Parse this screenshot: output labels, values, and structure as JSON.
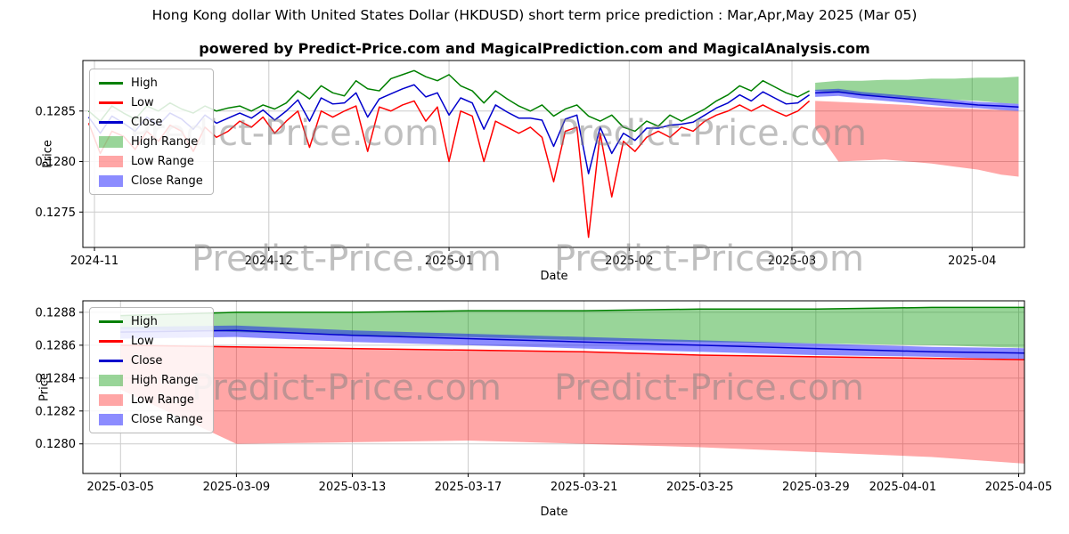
{
  "page": {
    "title": "Hong Kong dollar With United States Dollar (HKDUSD) short term price prediction : Mar,Apr,May 2025 (Mar 05)",
    "subtitle": "powered by Predict-Price.com and MagicalPrediction.com and MagicalAnalysis.com",
    "watermark": "Predict-Price.com"
  },
  "legend": {
    "entries": [
      {
        "label": "High",
        "type": "line",
        "color": "#008000"
      },
      {
        "label": "Low",
        "type": "line",
        "color": "#ff0000"
      },
      {
        "label": "Close",
        "type": "line",
        "color": "#0000cd"
      },
      {
        "label": "High Range",
        "type": "patch",
        "color": "rgba(0,150,0,0.4)"
      },
      {
        "label": "Low Range",
        "type": "patch",
        "color": "rgba(255,0,0,0.35)"
      },
      {
        "label": "Close Range",
        "type": "patch",
        "color": "rgba(0,0,255,0.45)"
      }
    ]
  },
  "chart_data": [
    {
      "name": "main-chart",
      "type": "line",
      "title": "",
      "xlabel": "Date",
      "ylabel": "Price",
      "xlim": [
        2,
        164
      ],
      "ylim": [
        0.12715,
        0.129
      ],
      "grid": true,
      "legend_position": "upper-left",
      "xticks": [
        {
          "x": 4,
          "label": "2024-11"
        },
        {
          "x": 34,
          "label": "2024-12"
        },
        {
          "x": 65,
          "label": "2025-01"
        },
        {
          "x": 96,
          "label": "2025-02"
        },
        {
          "x": 124,
          "label": "2025-03"
        },
        {
          "x": 155,
          "label": "2025-04"
        }
      ],
      "yticks": [
        {
          "y": 0.1275,
          "label": "0.1275"
        },
        {
          "y": 0.128,
          "label": "0.1280"
        },
        {
          "y": 0.1285,
          "label": "0.1285"
        }
      ],
      "x_hist": [
        3,
        5,
        7,
        9,
        11,
        13,
        15,
        17,
        19,
        21,
        23,
        25,
        27,
        29,
        31,
        33,
        35,
        37,
        39,
        41,
        43,
        45,
        47,
        49,
        51,
        53,
        55,
        57,
        59,
        61,
        63,
        65,
        67,
        69,
        71,
        73,
        75,
        77,
        79,
        81,
        83,
        85,
        87,
        89,
        91,
        93,
        95,
        97,
        99,
        101,
        103,
        105,
        107,
        109,
        111,
        113,
        115,
        117,
        119,
        121,
        123,
        125,
        127
      ],
      "x_pred": [
        128,
        132,
        136,
        140,
        144,
        148,
        152,
        156,
        160,
        163
      ],
      "series": [
        {
          "name": "High",
          "color": "#008000",
          "x": "hist",
          "y": [
            0.1285,
            0.1284,
            0.12855,
            0.12848,
            0.12842,
            0.12855,
            0.1285,
            0.12858,
            0.12852,
            0.12848,
            0.12855,
            0.1285,
            0.12853,
            0.12855,
            0.1285,
            0.12856,
            0.12852,
            0.12858,
            0.1287,
            0.12862,
            0.12875,
            0.12868,
            0.12865,
            0.1288,
            0.12872,
            0.1287,
            0.12882,
            0.12886,
            0.1289,
            0.12884,
            0.1288,
            0.12886,
            0.12875,
            0.1287,
            0.12858,
            0.1287,
            0.12862,
            0.12855,
            0.1285,
            0.12856,
            0.12845,
            0.12852,
            0.12856,
            0.12845,
            0.1284,
            0.12846,
            0.12834,
            0.1283,
            0.1284,
            0.12835,
            0.12846,
            0.1284,
            0.12846,
            0.12852,
            0.1286,
            0.12866,
            0.12875,
            0.1287,
            0.1288,
            0.12874,
            0.12868,
            0.12864,
            0.1287
          ]
        },
        {
          "name": "Low",
          "color": "#ff0000",
          "x": "hist",
          "y": [
            0.12838,
            0.12808,
            0.1283,
            0.12825,
            0.12812,
            0.1283,
            0.1282,
            0.12836,
            0.1283,
            0.1281,
            0.12834,
            0.12824,
            0.1283,
            0.1284,
            0.12834,
            0.12844,
            0.12828,
            0.1284,
            0.1285,
            0.12814,
            0.1285,
            0.12844,
            0.1285,
            0.12855,
            0.1281,
            0.12854,
            0.1285,
            0.12856,
            0.1286,
            0.1284,
            0.12854,
            0.128,
            0.1285,
            0.12845,
            0.128,
            0.1284,
            0.12834,
            0.12828,
            0.12834,
            0.12824,
            0.1278,
            0.1283,
            0.12834,
            0.12725,
            0.12828,
            0.12765,
            0.1282,
            0.1281,
            0.12824,
            0.1283,
            0.12824,
            0.12834,
            0.1283,
            0.1284,
            0.12846,
            0.1285,
            0.12856,
            0.1285,
            0.12856,
            0.1285,
            0.12845,
            0.1285,
            0.1286
          ]
        },
        {
          "name": "Close",
          "color": "#0000cd",
          "x": "hist",
          "y": [
            0.12844,
            0.12828,
            0.12845,
            0.12838,
            0.1283,
            0.12844,
            0.12836,
            0.12848,
            0.12842,
            0.12832,
            0.12846,
            0.12838,
            0.12843,
            0.12848,
            0.12843,
            0.12851,
            0.12841,
            0.1285,
            0.12861,
            0.1284,
            0.12863,
            0.12857,
            0.12858,
            0.12868,
            0.12844,
            0.12862,
            0.12867,
            0.12872,
            0.12876,
            0.12864,
            0.12868,
            0.12846,
            0.12863,
            0.12858,
            0.12832,
            0.12856,
            0.12849,
            0.12843,
            0.12843,
            0.12841,
            0.12815,
            0.12842,
            0.12846,
            0.12788,
            0.12834,
            0.12808,
            0.12828,
            0.12821,
            0.12833,
            0.12833,
            0.12836,
            0.12837,
            0.12839,
            0.12846,
            0.12853,
            0.12858,
            0.12866,
            0.1286,
            0.12869,
            0.12863,
            0.12857,
            0.12858,
            0.12866
          ]
        },
        {
          "name": "Close Prediction",
          "color": "#0000cd",
          "x": "pred",
          "y": [
            0.12868,
            0.12869,
            0.12866,
            0.12864,
            0.12862,
            0.1286,
            0.12858,
            0.12856,
            0.12855,
            0.12854
          ]
        }
      ],
      "bands": [
        {
          "name": "High Range",
          "color": "rgba(0,150,0,0.4)",
          "x": "pred",
          "upper": [
            0.12878,
            0.1288,
            0.1288,
            0.12881,
            0.12881,
            0.12882,
            0.12882,
            0.12883,
            0.12883,
            0.12884
          ],
          "lower": [
            0.1287,
            0.12868,
            0.12866,
            0.12865,
            0.12863,
            0.12862,
            0.12861,
            0.1286,
            0.12858,
            0.12857
          ]
        },
        {
          "name": "Low Range",
          "color": "rgba(255,0,0,0.35)",
          "x": "pred",
          "upper": [
            0.1286,
            0.12859,
            0.12858,
            0.12857,
            0.12856,
            0.12854,
            0.12853,
            0.12852,
            0.12851,
            0.1285
          ],
          "lower": [
            0.12833,
            0.128,
            0.12801,
            0.12802,
            0.128,
            0.12798,
            0.12795,
            0.12792,
            0.12787,
            0.12785
          ]
        },
        {
          "name": "Close Range",
          "color": "rgba(0,0,255,0.45)",
          "x": "pred",
          "upper": [
            0.12871,
            0.12872,
            0.12869,
            0.12867,
            0.12865,
            0.12863,
            0.12861,
            0.12859,
            0.12858,
            0.12857
          ],
          "lower": [
            0.12864,
            0.12865,
            0.12862,
            0.1286,
            0.12858,
            0.12856,
            0.12854,
            0.12853,
            0.12851,
            0.1285
          ]
        }
      ]
    },
    {
      "name": "zoom-chart",
      "type": "line",
      "title": "",
      "xlabel": "Date",
      "ylabel": "Price",
      "xlim": [
        126.7,
        159.2
      ],
      "ylim": [
        0.12782,
        0.12887
      ],
      "grid": true,
      "legend_position": "upper-left",
      "xticks": [
        {
          "x": 128,
          "label": "2025-03-05"
        },
        {
          "x": 132,
          "label": "2025-03-09"
        },
        {
          "x": 136,
          "label": "2025-03-13"
        },
        {
          "x": 140,
          "label": "2025-03-17"
        },
        {
          "x": 144,
          "label": "2025-03-21"
        },
        {
          "x": 148,
          "label": "2025-03-25"
        },
        {
          "x": 152,
          "label": "2025-03-29"
        },
        {
          "x": 155,
          "label": "2025-04-01"
        },
        {
          "x": 159,
          "label": "2025-04-05"
        }
      ],
      "yticks": [
        {
          "y": 0.128,
          "label": "0.1280"
        },
        {
          "y": 0.1282,
          "label": "0.1282"
        },
        {
          "y": 0.1284,
          "label": "0.1284"
        },
        {
          "y": 0.1286,
          "label": "0.1286"
        },
        {
          "y": 0.1288,
          "label": "0.1288"
        }
      ],
      "x_pred": [
        128,
        132,
        136,
        140,
        144,
        148,
        152,
        156,
        160,
        163
      ],
      "series": [
        {
          "name": "High",
          "color": "#008000",
          "x": "pred",
          "y": [
            0.12878,
            0.1288,
            0.1288,
            0.12881,
            0.12881,
            0.12882,
            0.12882,
            0.12883,
            0.12883,
            0.12884
          ]
        },
        {
          "name": "Low",
          "color": "#ff0000",
          "x": "pred",
          "y": [
            0.1286,
            0.12859,
            0.12858,
            0.12857,
            0.12856,
            0.12854,
            0.12853,
            0.12852,
            0.12851,
            0.1285
          ]
        },
        {
          "name": "Close",
          "color": "#0000cd",
          "x": "pred",
          "y": [
            0.12868,
            0.12869,
            0.12866,
            0.12864,
            0.12862,
            0.1286,
            0.12858,
            0.12856,
            0.12855,
            0.12854
          ]
        }
      ],
      "bands": [
        {
          "name": "High Range",
          "color": "rgba(0,150,0,0.4)",
          "x": "pred",
          "upper": [
            0.12878,
            0.1288,
            0.1288,
            0.12881,
            0.12881,
            0.12882,
            0.12882,
            0.12883,
            0.12883,
            0.12884
          ],
          "lower": [
            0.1287,
            0.12868,
            0.12866,
            0.12865,
            0.12863,
            0.12862,
            0.12861,
            0.1286,
            0.12858,
            0.12857
          ]
        },
        {
          "name": "Low Range",
          "color": "rgba(255,0,0,0.35)",
          "x": "pred",
          "upper": [
            0.1286,
            0.12859,
            0.12858,
            0.12857,
            0.12856,
            0.12854,
            0.12853,
            0.12852,
            0.12851,
            0.1285
          ],
          "lower": [
            0.12833,
            0.128,
            0.12801,
            0.12802,
            0.128,
            0.12798,
            0.12795,
            0.12792,
            0.12787,
            0.12785
          ]
        },
        {
          "name": "Close Range",
          "color": "rgba(0,0,255,0.45)",
          "x": "pred",
          "upper": [
            0.12871,
            0.12872,
            0.12869,
            0.12867,
            0.12865,
            0.12863,
            0.12861,
            0.12859,
            0.12858,
            0.12857
          ],
          "lower": [
            0.12864,
            0.12865,
            0.12862,
            0.1286,
            0.12858,
            0.12856,
            0.12854,
            0.12853,
            0.12851,
            0.1285
          ]
        }
      ]
    }
  ]
}
